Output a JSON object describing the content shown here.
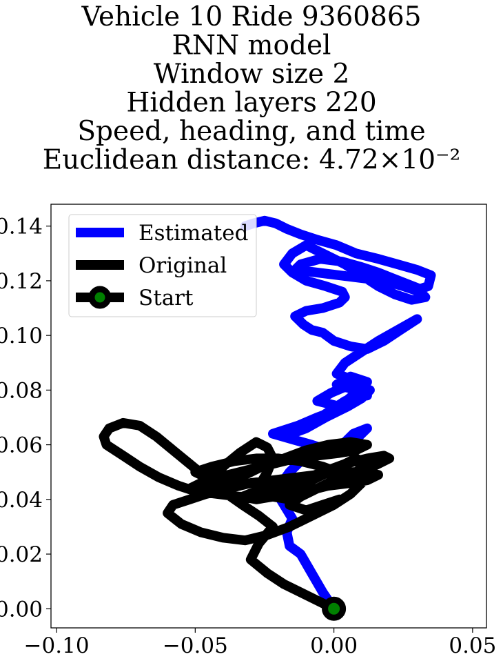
{
  "chart_data": {
    "type": "line",
    "title_lines": [
      "Vehicle 10 Ride 9360865",
      "RNN model",
      "Window size 2",
      "Hidden layers 220",
      "Speed, heading, and time",
      "Euclidean distance: 4.72×10⁻²"
    ],
    "xlabel": "",
    "ylabel": "",
    "xlim": [
      -0.102,
      0.055
    ],
    "ylim": [
      -0.007,
      0.148
    ],
    "x_ticks": [
      -0.1,
      -0.05,
      0.0,
      0.05
    ],
    "x_tick_labels": [
      "−0.10",
      "−0.05",
      "0.00",
      "0.05"
    ],
    "y_ticks": [
      0.0,
      0.02,
      0.04,
      0.06,
      0.08,
      0.1,
      0.12,
      0.14
    ],
    "y_tick_labels": [
      "0.00",
      "0.02",
      "0.04",
      "0.06",
      "0.08",
      "0.10",
      "0.12",
      "0.14"
    ],
    "grid": false,
    "legend_position": "top-left",
    "series": [
      {
        "name": "Estimated",
        "color": "#0000ff",
        "x": [
          0.0,
          -0.004,
          -0.008,
          -0.012,
          -0.016,
          -0.017,
          -0.015,
          -0.018,
          -0.021,
          -0.016,
          -0.012,
          -0.008,
          -0.004,
          0.002,
          0.006,
          0.009,
          0.012,
          0.007,
          0.003,
          -0.002,
          -0.008,
          -0.015,
          -0.022,
          -0.013,
          -0.006,
          0.002,
          0.008,
          0.012,
          0.004,
          -0.002,
          -0.008,
          -0.014,
          -0.018,
          -0.01,
          -0.003,
          0.005,
          0.01,
          0.013,
          0.006,
          -0.001,
          -0.006,
          0.002,
          0.008,
          0.012,
          0.006,
          0.001,
          0.008,
          0.012,
          0.006,
          0.001,
          0.004,
          0.01,
          0.016,
          0.023,
          0.03,
          0.024,
          0.018,
          0.012,
          0.006,
          0.0,
          -0.004,
          -0.008,
          -0.011,
          -0.014,
          -0.01,
          -0.004,
          0.002,
          0.004,
          0.003,
          -0.003,
          -0.01,
          -0.015,
          -0.018,
          -0.015,
          -0.01,
          -0.004,
          0.004,
          0.01,
          0.016,
          0.022,
          0.028,
          0.033,
          0.031,
          0.025,
          0.018,
          0.01,
          0.002,
          -0.006,
          -0.014,
          -0.012,
          -0.005,
          0.003,
          0.01,
          0.016,
          0.021,
          0.026,
          0.031,
          0.034,
          0.035,
          0.03,
          0.023,
          0.016,
          0.008,
          0.001,
          -0.006,
          -0.012,
          -0.017,
          -0.021,
          -0.025,
          -0.029,
          -0.032
        ],
        "y": [
          0.0,
          0.006,
          0.013,
          0.02,
          0.023,
          0.028,
          0.033,
          0.038,
          0.043,
          0.05,
          0.054,
          0.056,
          0.057,
          0.058,
          0.06,
          0.063,
          0.066,
          0.064,
          0.06,
          0.058,
          0.06,
          0.062,
          0.064,
          0.067,
          0.07,
          0.073,
          0.076,
          0.079,
          0.076,
          0.072,
          0.068,
          0.065,
          0.063,
          0.066,
          0.07,
          0.074,
          0.077,
          0.08,
          0.082,
          0.079,
          0.076,
          0.074,
          0.079,
          0.083,
          0.085,
          0.082,
          0.08,
          0.078,
          0.084,
          0.086,
          0.09,
          0.094,
          0.098,
          0.102,
          0.106,
          0.102,
          0.098,
          0.095,
          0.096,
          0.098,
          0.101,
          0.102,
          0.104,
          0.107,
          0.109,
          0.11,
          0.112,
          0.114,
          0.116,
          0.118,
          0.12,
          0.123,
          0.126,
          0.13,
          0.133,
          0.13,
          0.126,
          0.122,
          0.118,
          0.115,
          0.113,
          0.114,
          0.116,
          0.118,
          0.12,
          0.121,
          0.122,
          0.123,
          0.124,
          0.126,
          0.128,
          0.127,
          0.125,
          0.123,
          0.121,
          0.119,
          0.117,
          0.118,
          0.122,
          0.124,
          0.126,
          0.128,
          0.13,
          0.133,
          0.135,
          0.137,
          0.139,
          0.141,
          0.142,
          0.141,
          0.14
        ]
      },
      {
        "name": "Original",
        "color": "#000000",
        "x": [
          0.0,
          -0.006,
          -0.012,
          -0.018,
          -0.024,
          -0.03,
          -0.027,
          -0.022,
          -0.027,
          -0.033,
          -0.04,
          -0.046,
          -0.052,
          -0.058,
          -0.064,
          -0.07,
          -0.076,
          -0.081,
          -0.083,
          -0.082,
          -0.076,
          -0.07,
          -0.063,
          -0.056,
          -0.05,
          -0.042,
          -0.034,
          -0.026,
          -0.018,
          -0.01,
          -0.002,
          0.006,
          0.012,
          0.016,
          0.01,
          0.002,
          -0.006,
          -0.014,
          -0.022,
          -0.03,
          -0.038,
          -0.046,
          -0.052,
          -0.058,
          -0.06,
          -0.055,
          -0.048,
          -0.04,
          -0.032,
          -0.024,
          -0.016,
          -0.008,
          0.0,
          0.006,
          0.01,
          0.004,
          -0.004,
          -0.012,
          -0.02,
          -0.028,
          -0.036,
          -0.044,
          -0.05,
          -0.046,
          -0.038,
          -0.03,
          -0.022,
          -0.014,
          -0.006,
          0.002,
          0.008,
          0.012,
          0.006,
          -0.002,
          -0.01,
          -0.018,
          -0.026,
          -0.034,
          -0.042,
          -0.048,
          -0.052,
          -0.046,
          -0.04,
          -0.034,
          -0.028,
          -0.024,
          -0.022,
          -0.024,
          -0.027,
          -0.022,
          -0.016,
          -0.01,
          -0.004,
          0.002,
          0.008,
          0.014,
          0.02,
          0.018,
          0.012,
          0.004,
          -0.004,
          -0.012,
          -0.02,
          -0.028,
          -0.033,
          -0.028,
          -0.022,
          -0.016,
          -0.01,
          -0.004,
          0.002,
          0.008,
          0.012,
          0.008,
          0.002,
          -0.006,
          -0.012,
          -0.016,
          -0.01,
          -0.004,
          0.002
        ],
        "y": [
          0.0,
          0.003,
          0.006,
          0.009,
          0.013,
          0.018,
          0.024,
          0.03,
          0.034,
          0.038,
          0.043,
          0.048,
          0.053,
          0.058,
          0.063,
          0.067,
          0.068,
          0.066,
          0.063,
          0.06,
          0.056,
          0.052,
          0.048,
          0.045,
          0.043,
          0.042,
          0.041,
          0.041,
          0.042,
          0.043,
          0.045,
          0.046,
          0.047,
          0.049,
          0.05,
          0.05,
          0.049,
          0.048,
          0.047,
          0.046,
          0.044,
          0.042,
          0.04,
          0.038,
          0.035,
          0.031,
          0.028,
          0.026,
          0.025,
          0.027,
          0.03,
          0.034,
          0.038,
          0.042,
          0.046,
          0.049,
          0.052,
          0.054,
          0.055,
          0.055,
          0.054,
          0.052,
          0.05,
          0.048,
          0.049,
          0.051,
          0.053,
          0.055,
          0.056,
          0.057,
          0.058,
          0.06,
          0.061,
          0.06,
          0.058,
          0.055,
          0.052,
          0.048,
          0.045,
          0.043,
          0.044,
          0.047,
          0.052,
          0.057,
          0.061,
          0.059,
          0.055,
          0.05,
          0.045,
          0.041,
          0.04,
          0.042,
          0.045,
          0.048,
          0.05,
          0.052,
          0.055,
          0.056,
          0.055,
          0.053,
          0.05,
          0.047,
          0.045,
          0.043,
          0.041,
          0.04,
          0.041,
          0.043,
          0.046,
          0.049,
          0.052,
          0.055,
          0.053,
          0.05,
          0.047,
          0.044,
          0.041,
          0.038,
          0.036,
          0.038,
          0.04
        ]
      }
    ],
    "start_marker": {
      "name": "Start",
      "x": 0.0,
      "y": 0.0,
      "edge_color": "#000000",
      "face_color": "#008000"
    }
  }
}
